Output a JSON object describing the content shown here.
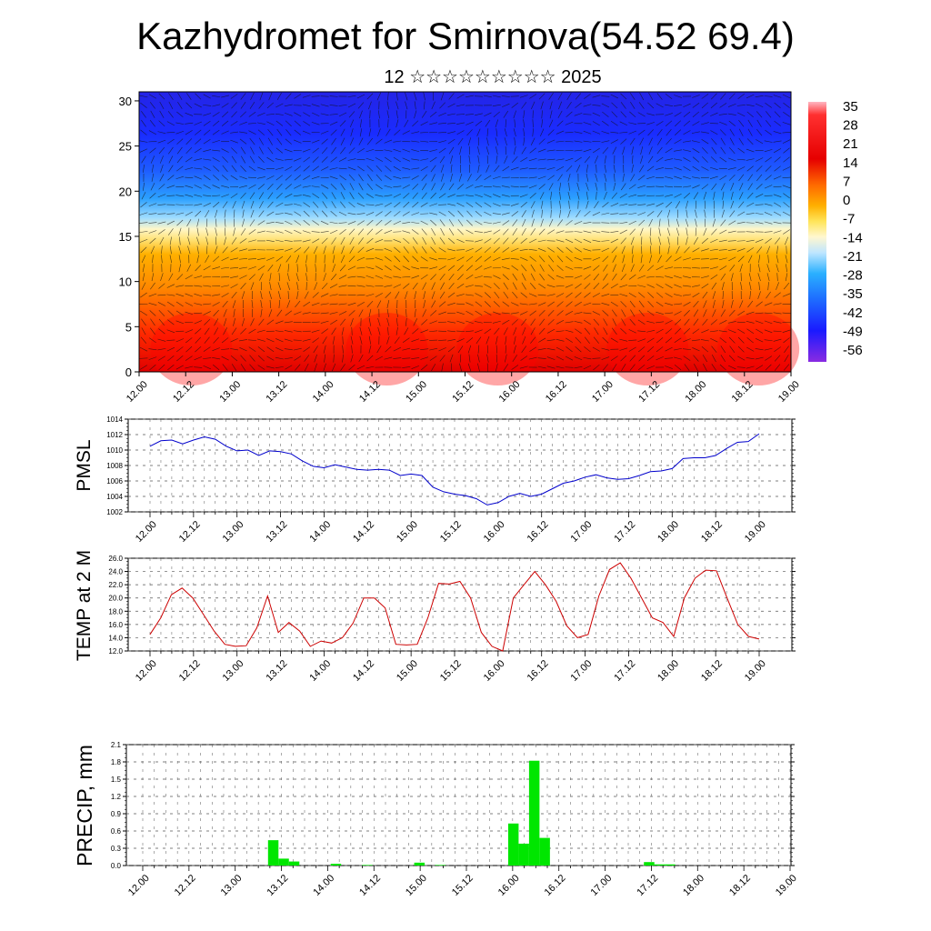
{
  "title": "Kazhydromet for Smirnova(54.52 69.4)",
  "subtitle": "12 ☆☆☆☆☆☆☆☆☆ 2025",
  "chart_data": [
    {
      "type": "heatmap",
      "name": "vertical-section",
      "x_ticks": [
        "12.00",
        "12.12",
        "13.00",
        "13.12",
        "14.00",
        "14.12",
        "15.00",
        "15.12",
        "16.00",
        "16.12",
        "17.00",
        "17.12",
        "18.00",
        "18.12",
        "19.00"
      ],
      "y_ticks": [
        0,
        5,
        10,
        15,
        20,
        25,
        30
      ],
      "ylim": [
        0,
        31
      ],
      "colorbar_labels": [
        35,
        28,
        21,
        14,
        7,
        0,
        -7,
        -14,
        -21,
        -28,
        -35,
        -42,
        -49,
        -56
      ],
      "value_range": [
        -60,
        38
      ],
      "colors": {
        "hot": "#e60000",
        "warm": "#ff8c00",
        "mild": "#ffd700",
        "neutral": "#fff7c0",
        "cool": "#8fd3ff",
        "cold": "#1e90ff",
        "frigid": "#1a1aff",
        "violet": "#7a3cff",
        "pink": "#ffb6c1"
      }
    },
    {
      "type": "line",
      "ylabel": "PMSL",
      "x_ticks": [
        "12.00",
        "12.12",
        "13.00",
        "13.12",
        "14.00",
        "14.12",
        "15.00",
        "15.12",
        "16.00",
        "16.12",
        "17.00",
        "17.12",
        "18.00",
        "18.12",
        "19.00"
      ],
      "y_ticks": [
        1002,
        1004,
        1006,
        1008,
        1010,
        1012,
        1014
      ],
      "ylim": [
        1002,
        1014
      ],
      "color": "#0000cc",
      "values": [
        1010.5,
        1011.2,
        1011.3,
        1010.8,
        1011.3,
        1011.7,
        1011.4,
        1010.5,
        1009.9,
        1010.0,
        1009.3,
        1009.9,
        1009.8,
        1009.5,
        1008.6,
        1007.9,
        1007.7,
        1008.1,
        1007.8,
        1007.5,
        1007.4,
        1007.5,
        1007.4,
        1006.7,
        1006.9,
        1006.7,
        1005.2,
        1004.6,
        1004.3,
        1004.1,
        1003.7,
        1002.9,
        1003.2,
        1004.0,
        1004.4,
        1004.0,
        1004.3,
        1005.0,
        1005.7,
        1006.0,
        1006.5,
        1006.8,
        1006.4,
        1006.2,
        1006.3,
        1006.7,
        1007.2,
        1007.3,
        1007.6,
        1008.9,
        1009.0,
        1009.0,
        1009.3,
        1010.2,
        1011.0,
        1011.1,
        1012.1
      ]
    },
    {
      "type": "line",
      "ylabel": "TEMP at 2 M",
      "x_ticks": [
        "12.00",
        "12.12",
        "13.00",
        "13.12",
        "14.00",
        "14.12",
        "15.00",
        "15.12",
        "16.00",
        "16.12",
        "17.00",
        "17.12",
        "18.00",
        "18.12",
        "19.00"
      ],
      "y_ticks": [
        "12.0",
        "14.0",
        "16.0",
        "18.0",
        "20.0",
        "22.0",
        "24.0",
        "26.0"
      ],
      "ylim": [
        12,
        26
      ],
      "color": "#cc0000",
      "values": [
        14.5,
        17.0,
        20.5,
        21.5,
        20.0,
        17.5,
        15.0,
        13.0,
        12.7,
        12.8,
        15.5,
        20.3,
        14.8,
        16.3,
        15.0,
        12.7,
        13.5,
        13.2,
        14.0,
        16.2,
        20.0,
        20.0,
        18.5,
        13.0,
        12.9,
        13.0,
        17.0,
        22.2,
        22.1,
        22.5,
        20.0,
        14.8,
        12.7,
        12.0,
        20.0,
        22.0,
        24.0,
        22.0,
        19.5,
        15.8,
        14.0,
        14.5,
        20.3,
        24.3,
        25.3,
        23.0,
        20.0,
        17.0,
        16.3,
        14.2,
        20.0,
        23.0,
        24.2,
        24.1,
        20.0,
        16.0,
        14.2,
        13.8
      ]
    },
    {
      "type": "bar",
      "ylabel": "PRECIP, mm",
      "x_ticks": [
        "12.00",
        "12.12",
        "13.00",
        "13.12",
        "14.00",
        "14.12",
        "15.00",
        "15.12",
        "16.00",
        "16.12",
        "17.00",
        "17.12",
        "18.00",
        "18.12",
        "19.00"
      ],
      "y_ticks": [
        "0.0",
        "0.3",
        "0.6",
        "0.9",
        "1.2",
        "1.5",
        "1.8",
        "2.1"
      ],
      "ylim": [
        0,
        2.1
      ],
      "color": "#00e600",
      "values": [
        0,
        0,
        0,
        0,
        0,
        0,
        0,
        0,
        0,
        0,
        0,
        0,
        0.44,
        0.12,
        0.07,
        0,
        0,
        0,
        0.03,
        0,
        0,
        0.01,
        0,
        0,
        0,
        0,
        0.05,
        0,
        0.01,
        0,
        0,
        0,
        0,
        0,
        0,
        0.73,
        0.38,
        1.82,
        0.48,
        0,
        0,
        0,
        0,
        0,
        0,
        0,
        0,
        0,
        0.06,
        0.02,
        0.02,
        0,
        0,
        0,
        0,
        0,
        0,
        0,
        0,
        0,
        0,
        0
      ]
    }
  ]
}
